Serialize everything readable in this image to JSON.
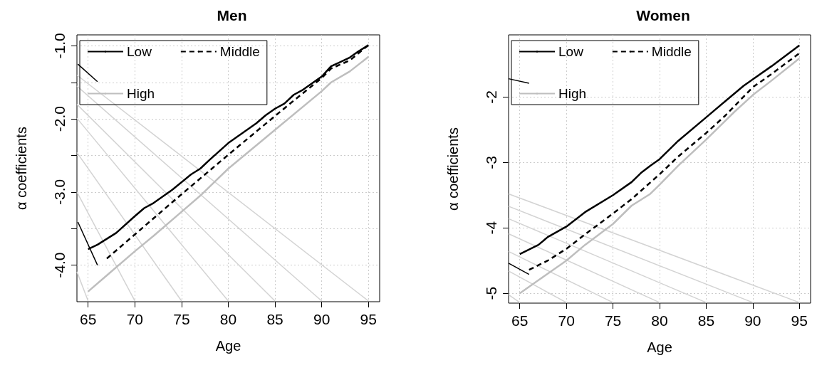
{
  "chart_data": [
    {
      "type": "line",
      "title": "Men",
      "xlabel": "Age",
      "ylabel": "α coefficients",
      "xlim": [
        63.8,
        96.2
      ],
      "xticks": [
        65,
        70,
        75,
        80,
        85,
        90,
        95
      ],
      "ylim": [
        -4.5,
        -0.85
      ],
      "yticks": [
        {
          "value": -1,
          "label": "-1.0"
        },
        {
          "value": -1.5,
          "label": null
        },
        {
          "value": -2,
          "label": "-2.0"
        },
        {
          "value": -2.5,
          "label": null
        },
        {
          "value": -3,
          "label": "-3.0"
        },
        {
          "value": -3.5,
          "label": null
        },
        {
          "value": -4,
          "label": "-4.0"
        }
      ],
      "grid": true,
      "legend": "top left",
      "marker": "none",
      "series": [
        {
          "name": "Low",
          "color": "#000000",
          "line_style": "solid",
          "x": [
            65,
            66,
            68,
            70,
            71,
            72,
            74,
            76,
            77,
            78,
            80,
            82,
            83,
            84,
            85,
            86,
            87,
            88,
            90,
            91,
            92,
            93,
            94,
            95
          ],
          "values": [
            -3.78,
            -3.72,
            -3.56,
            -3.33,
            -3.22,
            -3.15,
            -2.97,
            -2.76,
            -2.68,
            -2.56,
            -2.33,
            -2.15,
            -2.06,
            -1.95,
            -1.86,
            -1.79,
            -1.67,
            -1.6,
            -1.42,
            -1.28,
            -1.22,
            -1.16,
            -1.07,
            -0.99
          ]
        },
        {
          "name": "Middle",
          "color": "#000000",
          "line_style": "dashed",
          "x": [
            67,
            70,
            75,
            80,
            85,
            87,
            90,
            91,
            93,
            95
          ],
          "values": [
            -3.91,
            -3.58,
            -3.03,
            -2.49,
            -1.96,
            -1.75,
            -1.44,
            -1.31,
            -1.2,
            -0.99
          ]
        },
        {
          "name": "High",
          "color": "#bebebe",
          "line_style": "solid",
          "x": [
            65,
            67,
            70,
            72,
            75,
            77,
            80,
            85,
            90,
            91,
            93,
            95
          ],
          "values": [
            -4.36,
            -4.14,
            -3.81,
            -3.6,
            -3.27,
            -3.05,
            -2.68,
            -2.15,
            -1.62,
            -1.5,
            -1.35,
            -1.15
          ]
        },
        {
          "color": "#000000",
          "line_style": "solid",
          "x": [
            63.9,
            66
          ],
          "values": [
            -3.41,
            -4.0
          ]
        },
        {
          "color": "#000000",
          "line_style": "solid",
          "x": [
            63.9,
            66
          ],
          "values": [
            -1.25,
            -1.49
          ]
        },
        {
          "color": "#d3d3d3",
          "line_style": "solid",
          "x": [
            63.8,
            95
          ],
          "values": [
            -1.4,
            -4.49
          ]
        },
        {
          "color": "#d3d3d3",
          "line_style": "solid",
          "x": [
            63.8,
            90
          ],
          "values": [
            -1.55,
            -4.49
          ]
        },
        {
          "color": "#d3d3d3",
          "line_style": "solid",
          "x": [
            63.8,
            85
          ],
          "values": [
            -1.8,
            -4.49
          ]
        },
        {
          "color": "#d3d3d3",
          "line_style": "solid",
          "x": [
            63.8,
            80
          ],
          "values": [
            -1.99,
            -4.49
          ]
        },
        {
          "color": "#d3d3d3",
          "line_style": "solid",
          "x": [
            63.8,
            75
          ],
          "values": [
            -2.46,
            -4.49
          ]
        },
        {
          "color": "#d3d3d3",
          "line_style": "solid",
          "x": [
            63.8,
            70
          ],
          "values": [
            -3.0,
            -4.49
          ]
        },
        {
          "color": "#d3d3d3",
          "line_style": "solid",
          "x": [
            63.8,
            65
          ],
          "values": [
            -4.09,
            -4.49
          ]
        }
      ]
    },
    {
      "type": "line",
      "title": "Women",
      "xlabel": "Age",
      "ylabel": "α coefficients",
      "xlim": [
        63.8,
        96.2
      ],
      "xticks": [
        65,
        70,
        75,
        80,
        85,
        90,
        95
      ],
      "ylim": [
        -5.15,
        -1.05
      ],
      "yticks": [
        -2,
        -3,
        -4,
        -5
      ],
      "grid": true,
      "legend": "top left",
      "marker": "none",
      "series": [
        {
          "name": "Low",
          "color": "#000000",
          "line_style": "solid",
          "x": [
            65,
            67,
            68,
            70,
            72,
            75,
            77,
            78,
            79,
            80,
            82,
            85,
            87,
            89,
            90,
            92,
            95
          ],
          "values": [
            -4.4,
            -4.26,
            -4.14,
            -3.98,
            -3.76,
            -3.5,
            -3.3,
            -3.16,
            -3.05,
            -2.95,
            -2.67,
            -2.31,
            -2.07,
            -1.83,
            -1.73,
            -1.53,
            -1.21
          ]
        },
        {
          "name": "Middle",
          "color": "#000000",
          "line_style": "dashed",
          "x": [
            66,
            68,
            70,
            72,
            75,
            77,
            80,
            82,
            85,
            87,
            90,
            92,
            95
          ],
          "values": [
            -4.64,
            -4.5,
            -4.32,
            -4.1,
            -3.78,
            -3.56,
            -3.18,
            -2.91,
            -2.55,
            -2.29,
            -1.85,
            -1.65,
            -1.33
          ]
        },
        {
          "name": "High",
          "color": "#bebebe",
          "line_style": "solid",
          "x": [
            65,
            67,
            70,
            72,
            75,
            77,
            79,
            80,
            82,
            85,
            88,
            90,
            92,
            95
          ],
          "values": [
            -5.0,
            -4.8,
            -4.5,
            -4.26,
            -3.94,
            -3.66,
            -3.48,
            -3.34,
            -3.05,
            -2.65,
            -2.23,
            -1.97,
            -1.75,
            -1.41
          ]
        },
        {
          "color": "#000000",
          "line_style": "solid",
          "x": [
            63.8,
            66
          ],
          "values": [
            -1.72,
            -1.79
          ]
        },
        {
          "color": "#000000",
          "line_style": "solid",
          "x": [
            63.8,
            66
          ],
          "values": [
            -4.54,
            -4.71
          ]
        },
        {
          "color": "#d3d3d3",
          "line_style": "solid",
          "x": [
            63.8,
            95
          ],
          "values": [
            -3.48,
            -5.14
          ]
        },
        {
          "color": "#d3d3d3",
          "line_style": "solid",
          "x": [
            63.8,
            90
          ],
          "values": [
            -3.67,
            -5.14
          ]
        },
        {
          "color": "#d3d3d3",
          "line_style": "solid",
          "x": [
            63.8,
            85
          ],
          "values": [
            -3.86,
            -5.14
          ]
        },
        {
          "color": "#d3d3d3",
          "line_style": "solid",
          "x": [
            63.8,
            80
          ],
          "values": [
            -4.09,
            -5.14
          ]
        },
        {
          "color": "#d3d3d3",
          "line_style": "solid",
          "x": [
            63.8,
            75
          ],
          "values": [
            -4.36,
            -5.14
          ]
        },
        {
          "color": "#d3d3d3",
          "line_style": "solid",
          "x": [
            63.8,
            70
          ],
          "values": [
            -4.66,
            -5.14
          ]
        },
        {
          "color": "#d3d3d3",
          "line_style": "solid",
          "x": [
            63.8,
            65
          ],
          "values": [
            -5.02,
            -5.14
          ]
        }
      ]
    }
  ]
}
